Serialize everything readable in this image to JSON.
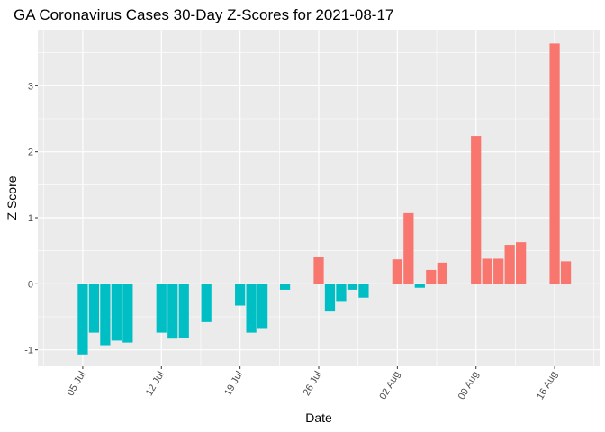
{
  "chart_data": {
    "type": "bar",
    "title": "GA Coronavirus Cases 30-Day Z-Scores for 2021-08-17",
    "xlabel": "Date",
    "ylabel": "Z Score",
    "ylim": [
      -1.25,
      3.85
    ],
    "y_ticks": [
      -1,
      0,
      1,
      2,
      3
    ],
    "x_range": [
      "2021-07-01",
      "2021-08-20"
    ],
    "x_ticks": [
      {
        "date": "2021-07-05",
        "label": "05 Jul"
      },
      {
        "date": "2021-07-12",
        "label": "12 Jul"
      },
      {
        "date": "2021-07-19",
        "label": "19 Jul"
      },
      {
        "date": "2021-07-26",
        "label": "26 Jul"
      },
      {
        "date": "2021-08-02",
        "label": "02 Aug"
      },
      {
        "date": "2021-08-09",
        "label": "09 Aug"
      },
      {
        "date": "2021-08-16",
        "label": "16 Aug"
      }
    ],
    "grid": true,
    "legend": "none",
    "colors": {
      "positive": "#F8766D",
      "negative": "#00BFC4",
      "panel": "#EBEBEB",
      "grid": "#FFFFFF"
    },
    "x": [
      "2021-07-05",
      "2021-07-06",
      "2021-07-07",
      "2021-07-08",
      "2021-07-09",
      "2021-07-12",
      "2021-07-13",
      "2021-07-14",
      "2021-07-16",
      "2021-07-19",
      "2021-07-20",
      "2021-07-21",
      "2021-07-23",
      "2021-07-26",
      "2021-07-27",
      "2021-07-28",
      "2021-07-29",
      "2021-07-30",
      "2021-08-02",
      "2021-08-03",
      "2021-08-04",
      "2021-08-05",
      "2021-08-06",
      "2021-08-09",
      "2021-08-10",
      "2021-08-11",
      "2021-08-12",
      "2021-08-13",
      "2021-08-16",
      "2021-08-17"
    ],
    "values": [
      -1.07,
      -0.74,
      -0.93,
      -0.86,
      -0.89,
      -0.74,
      -0.83,
      -0.82,
      -0.58,
      -0.33,
      -0.74,
      -0.67,
      -0.09,
      0.41,
      -0.42,
      -0.26,
      -0.09,
      -0.21,
      0.37,
      1.07,
      -0.06,
      0.21,
      0.32,
      2.24,
      0.38,
      0.38,
      0.59,
      0.63,
      3.64,
      0.34
    ]
  }
}
